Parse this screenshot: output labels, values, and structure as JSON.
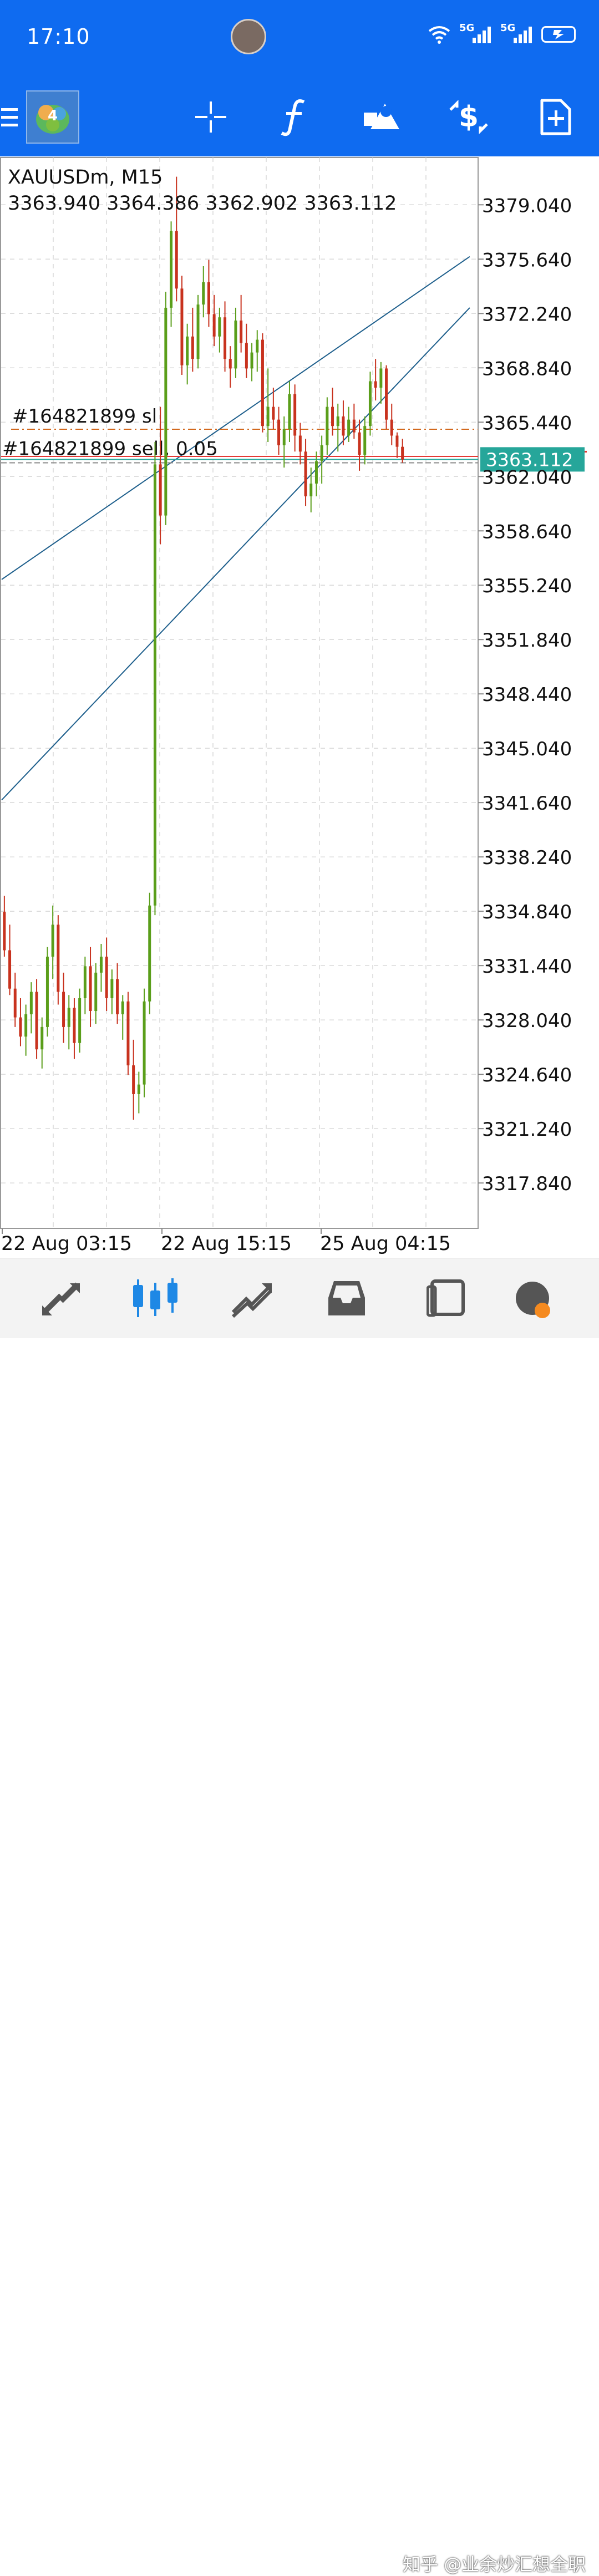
{
  "status_bar": {
    "time": "17:10",
    "network_labels": [
      "5G",
      "5G"
    ],
    "icons": [
      "wifi-icon",
      "signal-icon",
      "signal-icon",
      "battery-charging-icon"
    ]
  },
  "toolbar": {
    "items": [
      "menu-icon",
      "app-logo-icon",
      "crosshair-icon",
      "function-icon",
      "objects-icon",
      "trade-dollar-icon",
      "new-document-icon"
    ],
    "accent": "#0f6bf0"
  },
  "chart": {
    "symbol_line": "XAUUSDm, M15",
    "ohlc_line": "3363.940 3364.386 3362.902 3363.112",
    "price_labels": [
      "3379.040",
      "3375.640",
      "3372.240",
      "3368.840",
      "3365.440",
      "3362.040",
      "3358.640",
      "3355.240",
      "3351.840",
      "3348.440",
      "3345.040",
      "3341.640",
      "3338.240",
      "3334.840",
      "3331.440",
      "3328.040",
      "3324.640",
      "3321.240",
      "3317.840"
    ],
    "time_labels": [
      "22 Aug 03:15",
      "22 Aug 15:15",
      "25 Aug 04:15"
    ],
    "sl_label": "#164821899 sl",
    "order_label": "#164821899 sell, 0.05",
    "current_price": "3363.112",
    "colors": {
      "bull": "#5a9e1a",
      "bear": "#c8321e",
      "trendline": "#1e5f8c",
      "bid": "#26a69a",
      "ask": "#e53935",
      "sl": "#d2691e"
    }
  },
  "chart_data": {
    "type": "candlestick",
    "symbol": "XAUUSDm",
    "timeframe": "M15",
    "ylim": [
      3315.0,
      3382.0
    ],
    "x_labels": [
      "22 Aug 03:15",
      "22 Aug 15:15",
      "25 Aug 04:15"
    ],
    "candles": [
      [
        3334.8,
        3335.8,
        3332.0,
        3332.4
      ],
      [
        3332.4,
        3334.0,
        3329.6,
        3330.0
      ],
      [
        3330.0,
        3331.0,
        3327.6,
        3328.2
      ],
      [
        3328.2,
        3329.4,
        3326.4,
        3327.0
      ],
      [
        3327.0,
        3329.0,
        3325.8,
        3328.4
      ],
      [
        3328.4,
        3330.4,
        3327.2,
        3329.8
      ],
      [
        3329.8,
        3330.6,
        3325.6,
        3326.2
      ],
      [
        3326.2,
        3328.2,
        3325.0,
        3327.6
      ],
      [
        3327.6,
        3332.6,
        3327.0,
        3332.0
      ],
      [
        3332.0,
        3335.2,
        3330.6,
        3334.0
      ],
      [
        3334.0,
        3334.6,
        3329.0,
        3329.8
      ],
      [
        3329.8,
        3331.0,
        3326.6,
        3327.6
      ],
      [
        3327.6,
        3329.6,
        3326.2,
        3328.8
      ],
      [
        3328.8,
        3329.4,
        3325.6,
        3326.6
      ],
      [
        3326.6,
        3330.0,
        3326.0,
        3329.4
      ],
      [
        3329.4,
        3332.0,
        3328.4,
        3331.4
      ],
      [
        3331.4,
        3332.6,
        3327.6,
        3328.6
      ],
      [
        3328.6,
        3331.6,
        3327.8,
        3331.0
      ],
      [
        3331.0,
        3332.8,
        3329.8,
        3332.0
      ],
      [
        3332.0,
        3333.2,
        3328.6,
        3329.4
      ],
      [
        3329.4,
        3331.2,
        3328.4,
        3330.6
      ],
      [
        3330.6,
        3331.6,
        3327.8,
        3328.4
      ],
      [
        3328.4,
        3329.6,
        3326.8,
        3329.2
      ],
      [
        3329.2,
        3329.8,
        3324.6,
        3325.2
      ],
      [
        3325.2,
        3326.8,
        3321.8,
        3323.4
      ],
      [
        3323.4,
        3324.8,
        3322.2,
        3324.0
      ],
      [
        3324.0,
        3330.0,
        3323.2,
        3329.2
      ],
      [
        3329.2,
        3336.0,
        3328.4,
        3335.2
      ],
      [
        3335.2,
        3364.2,
        3334.6,
        3362.8
      ],
      [
        3362.8,
        3366.4,
        3357.8,
        3359.6
      ],
      [
        3359.6,
        3373.6,
        3359.0,
        3372.6
      ],
      [
        3372.6,
        3378.0,
        3371.4,
        3377.4
      ],
      [
        3377.4,
        3380.8,
        3373.0,
        3373.8
      ],
      [
        3373.8,
        3374.6,
        3368.4,
        3369.0
      ],
      [
        3369.0,
        3371.6,
        3367.8,
        3370.8
      ],
      [
        3370.8,
        3372.6,
        3368.6,
        3369.4
      ],
      [
        3369.4,
        3373.4,
        3368.8,
        3372.8
      ],
      [
        3372.8,
        3375.2,
        3372.0,
        3374.2
      ],
      [
        3374.2,
        3375.6,
        3371.4,
        3372.2
      ],
      [
        3372.2,
        3373.4,
        3370.2,
        3370.8
      ],
      [
        3370.8,
        3372.6,
        3369.8,
        3372.0
      ],
      [
        3372.0,
        3373.0,
        3368.6,
        3369.4
      ],
      [
        3369.4,
        3370.2,
        3367.6,
        3368.8
      ],
      [
        3368.8,
        3372.6,
        3368.2,
        3371.8
      ],
      [
        3371.8,
        3373.4,
        3369.8,
        3370.4
      ],
      [
        3370.4,
        3371.6,
        3368.2,
        3368.8
      ],
      [
        3368.8,
        3370.4,
        3368.0,
        3369.8
      ],
      [
        3369.8,
        3371.2,
        3368.6,
        3370.6
      ],
      [
        3370.6,
        3371.0,
        3364.8,
        3365.2
      ],
      [
        3365.2,
        3368.8,
        3364.2,
        3366.4
      ],
      [
        3366.4,
        3367.6,
        3365.0,
        3365.6
      ],
      [
        3365.6,
        3366.4,
        3363.4,
        3364.0
      ],
      [
        3364.0,
        3365.8,
        3362.6,
        3365.0
      ],
      [
        3365.0,
        3368.0,
        3364.2,
        3367.2
      ],
      [
        3367.2,
        3367.8,
        3363.6,
        3364.6
      ],
      [
        3364.6,
        3365.4,
        3362.8,
        3363.6
      ],
      [
        3363.6,
        3364.4,
        3360.2,
        3360.8
      ],
      [
        3360.8,
        3362.6,
        3359.8,
        3361.6
      ],
      [
        3361.6,
        3363.6,
        3360.8,
        3363.0
      ],
      [
        3363.0,
        3364.6,
        3361.6,
        3364.0
      ],
      [
        3364.0,
        3367.0,
        3363.4,
        3366.4
      ],
      [
        3366.4,
        3367.6,
        3364.6,
        3365.2
      ],
      [
        3365.2,
        3366.6,
        3363.6,
        3365.8
      ],
      [
        3365.8,
        3366.8,
        3364.0,
        3364.6
      ],
      [
        3364.6,
        3366.4,
        3364.2,
        3365.6
      ],
      [
        3365.6,
        3366.6,
        3364.4,
        3364.8
      ],
      [
        3364.8,
        3365.6,
        3362.4,
        3363.4
      ],
      [
        3363.4,
        3365.8,
        3362.8,
        3365.2
      ],
      [
        3365.2,
        3368.6,
        3364.6,
        3368.0
      ],
      [
        3368.0,
        3369.4,
        3366.8,
        3367.6
      ],
      [
        3367.6,
        3369.2,
        3366.6,
        3368.8
      ],
      [
        3368.8,
        3369.0,
        3365.0,
        3365.6
      ],
      [
        3365.6,
        3366.6,
        3364.0,
        3364.6
      ],
      [
        3364.6,
        3364.8,
        3363.2,
        3363.9
      ],
      [
        3363.9,
        3364.4,
        3362.9,
        3363.1
      ]
    ],
    "levels": {
      "stop_loss": 3365.0,
      "order": 3362.9,
      "bid": 3363.112,
      "ask": 3363.3
    },
    "trendlines": [
      {
        "from": [
          0,
          3355.6
        ],
        "to": [
          86,
          3375.8
        ]
      },
      {
        "from": [
          0,
          3341.8
        ],
        "to": [
          86,
          3372.6
        ]
      }
    ]
  },
  "bottom_nav": {
    "items": [
      "quotes-icon",
      "chart-icon",
      "trade-icon",
      "history-icon",
      "messages-icon",
      "settings-icon"
    ],
    "active": "chart-icon"
  },
  "watermark": "知乎 @业余炒汇想全职"
}
